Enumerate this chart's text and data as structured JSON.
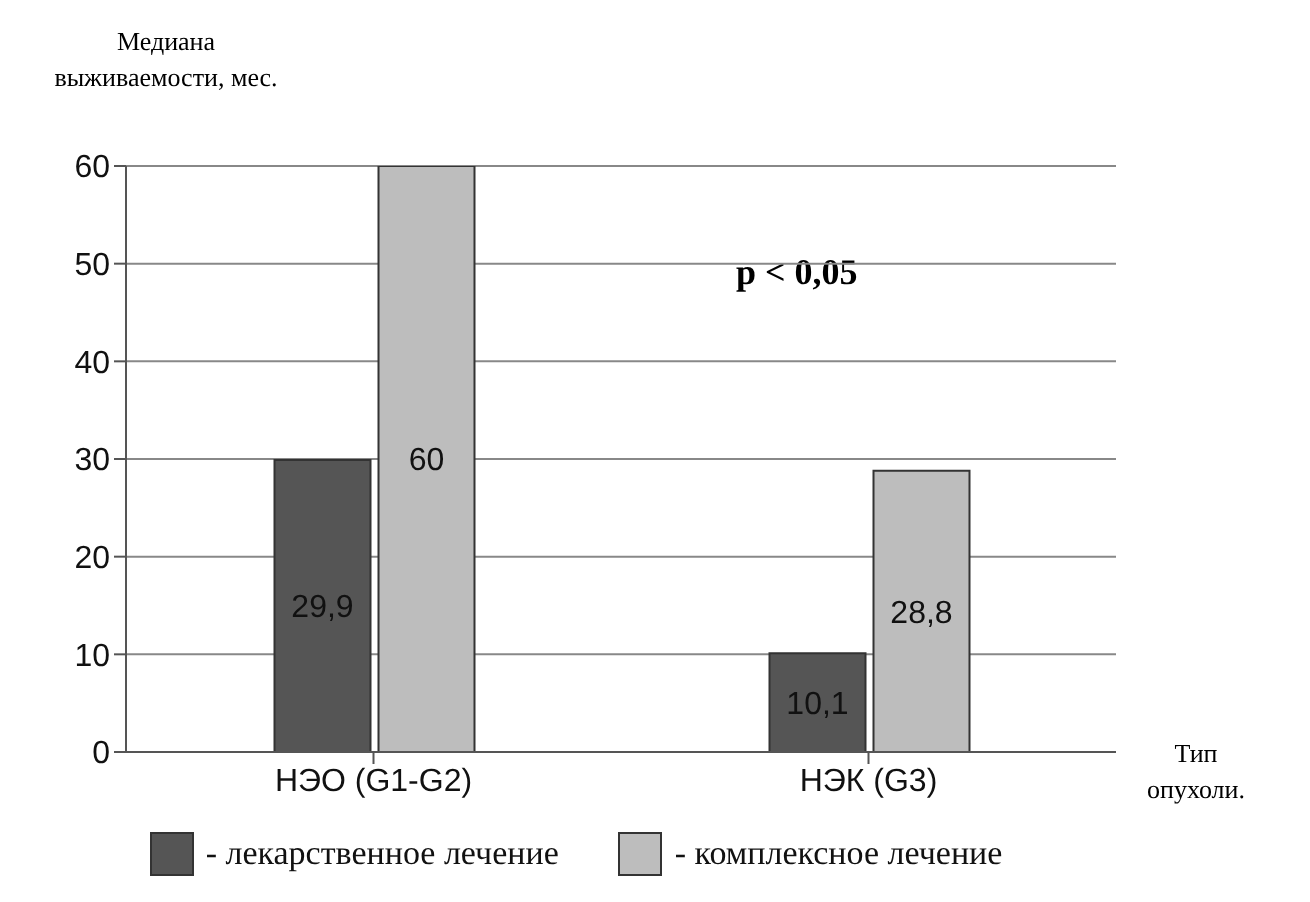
{
  "chart_data": {
    "type": "bar",
    "ylabel": "Медиана выживаемости, мес.",
    "xlabel": "Тип опухоли.",
    "categories": [
      "НЭО (G1-G2)",
      "НЭК (G3)"
    ],
    "series": [
      {
        "name": "- лекарственное лечение",
        "color": "#555555",
        "values": [
          29.9,
          10.1
        ],
        "value_labels": [
          "29,9",
          "10,1"
        ]
      },
      {
        "name": "- комплексное лечение",
        "color": "#bdbdbd",
        "values": [
          60,
          28.8
        ],
        "value_labels": [
          "60",
          "28,8"
        ]
      }
    ],
    "ylim": [
      0,
      60
    ],
    "yticks": [
      0,
      10,
      20,
      30,
      40,
      50,
      60
    ],
    "grid": "y",
    "legend": "bottom",
    "annotations": [
      "p < 0,05"
    ]
  }
}
